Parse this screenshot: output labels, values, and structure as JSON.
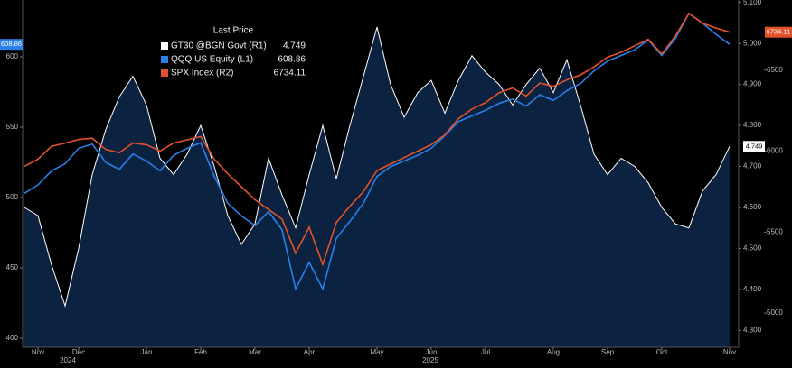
{
  "chart_data": {
    "type": "line",
    "legend_title": "Last Price",
    "categories": [
      null,
      "Nov",
      null,
      null,
      "Dec",
      null,
      null,
      null,
      null,
      "Jan",
      null,
      null,
      null,
      "Feb",
      null,
      null,
      null,
      "Mar",
      null,
      null,
      null,
      "Apr",
      null,
      null,
      null,
      null,
      "May",
      null,
      null,
      null,
      "Jun",
      null,
      null,
      null,
      "Jul",
      null,
      null,
      null,
      null,
      "Aug",
      null,
      null,
      null,
      "Sep",
      null,
      null,
      null,
      "Oct",
      null,
      null,
      null,
      null,
      "Nov"
    ],
    "years": [
      "2024",
      "2025"
    ],
    "ylim": [
      393.6,
      640.4
    ],
    "yticks": [
      400,
      450,
      500,
      550,
      600
    ],
    "y2lim": [
      4.259,
      5.106
    ],
    "y2ticks": [
      {
        "value": 4.3,
        "label": "4.300"
      },
      {
        "value": 4.4,
        "label": "4.400"
      },
      {
        "value": 4.5,
        "label": "4.500"
      },
      {
        "value": 4.6,
        "label": "4.600"
      },
      {
        "value": 4.7,
        "label": "4.700"
      },
      {
        "value": 4.8,
        "label": "4.800"
      },
      {
        "value": 4.9,
        "label": "4.900"
      },
      {
        "value": 5.0,
        "label": "5.000"
      },
      {
        "value": 5.1,
        "label": "5.100"
      }
    ],
    "y3lim": [
      4789,
      6933
    ],
    "y3ticks": [
      5000,
      5500,
      6000,
      6500
    ],
    "series": [
      {
        "name": "GT30 @BGN Govt  (R1)",
        "color": "#ffffff",
        "fill": "#0c2241",
        "axis": "y2",
        "values": [
          4.6,
          4.58,
          4.46,
          4.36,
          4.5,
          4.68,
          4.79,
          4.87,
          4.92,
          4.85,
          4.72,
          4.68,
          4.73,
          4.8,
          4.7,
          4.58,
          4.51,
          4.56,
          4.72,
          4.63,
          4.55,
          4.68,
          4.8,
          4.67,
          4.8,
          4.92,
          5.04,
          4.9,
          4.82,
          4.88,
          4.91,
          4.83,
          4.91,
          4.97,
          4.93,
          4.9,
          4.85,
          4.9,
          4.94,
          4.88,
          4.96,
          4.85,
          4.73,
          4.68,
          4.72,
          4.7,
          4.66,
          4.6,
          4.56,
          4.55,
          4.64,
          4.68,
          4.749
        ]
      },
      {
        "name": "QQQ US Equity  (L1)",
        "color": "#2a7fe8",
        "axis": "y",
        "values": [
          503,
          509,
          519,
          524,
          535,
          538,
          525,
          520,
          531,
          526,
          519,
          530,
          535,
          539,
          515,
          496,
          487,
          480,
          490,
          477,
          435,
          454,
          435,
          471,
          483,
          496,
          515,
          522,
          526,
          530,
          535,
          544,
          554,
          558,
          562,
          567,
          570,
          565,
          573,
          569,
          576,
          581,
          590,
          597,
          601,
          605,
          612,
          601,
          613,
          631,
          624,
          616,
          608.86
        ]
      },
      {
        "name": "SPX Index  (R2)",
        "color": "#e2522b",
        "axis": "y3",
        "values": [
          5906,
          5950,
          6030,
          6050,
          6072,
          6080,
          6010,
          5990,
          6050,
          6040,
          6000,
          6050,
          6070,
          6090,
          5950,
          5860,
          5780,
          5700,
          5640,
          5580,
          5370,
          5530,
          5300,
          5560,
          5660,
          5750,
          5880,
          5920,
          5960,
          6000,
          6040,
          6100,
          6200,
          6260,
          6300,
          6360,
          6390,
          6340,
          6420,
          6400,
          6440,
          6470,
          6520,
          6580,
          6610,
          6650,
          6690,
          6600,
          6710,
          6850,
          6790,
          6760,
          6734.11
        ]
      }
    ]
  }
}
